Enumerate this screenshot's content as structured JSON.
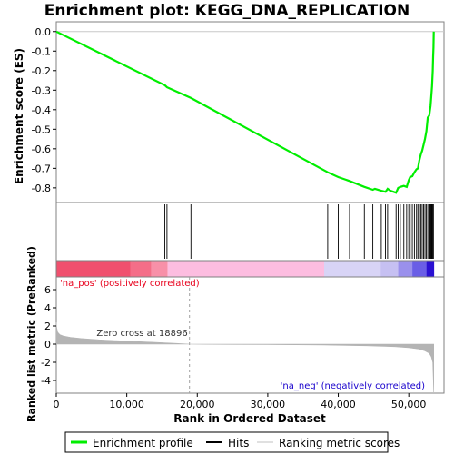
{
  "chart_data": {
    "type": "line",
    "title": "Enrichment plot: KEGG_DNA_REPLICATION",
    "xlabel": "Rank in Ordered Dataset",
    "xlim": [
      0,
      55000
    ],
    "x_ticks": [
      0,
      10000,
      20000,
      30000,
      40000,
      50000
    ],
    "x_tick_labels": [
      "0",
      "10,000",
      "20,000",
      "30,000",
      "40,000",
      "50,000"
    ],
    "top_panel": {
      "ylabel": "Enrichment score (ES)",
      "ylim": [
        -0.875,
        0.05
      ],
      "y_ticks": [
        0.0,
        -0.1,
        -0.2,
        -0.3,
        -0.4,
        -0.5,
        -0.6,
        -0.7,
        -0.8
      ],
      "y_tick_labels": [
        "0.0",
        "-0.1",
        "-0.2",
        "-0.3",
        "-0.4",
        "-0.5",
        "-0.6",
        "-0.7",
        "-0.8"
      ],
      "series": [
        {
          "name": "Enrichment profile",
          "color": "#00ee00",
          "x": [
            0,
            15400,
            15700,
            19100,
            38500,
            40000,
            41600,
            43700,
            44900,
            45200,
            46100,
            46700,
            47000,
            47400,
            48200,
            48500,
            48800,
            49300,
            49700,
            50000,
            50200,
            50500,
            50800,
            51100,
            51300,
            51500,
            51700,
            51900,
            52100,
            52300,
            52500,
            52700,
            52900,
            53100,
            53200,
            53300,
            53400,
            53450,
            53500,
            53550
          ],
          "y": [
            0.0,
            -0.275,
            -0.285,
            -0.34,
            -0.72,
            -0.745,
            -0.765,
            -0.795,
            -0.81,
            -0.805,
            -0.815,
            -0.82,
            -0.805,
            -0.815,
            -0.825,
            -0.8,
            -0.795,
            -0.79,
            -0.795,
            -0.76,
            -0.745,
            -0.74,
            -0.72,
            -0.705,
            -0.7,
            -0.66,
            -0.63,
            -0.61,
            -0.58,
            -0.55,
            -0.51,
            -0.44,
            -0.43,
            -0.38,
            -0.33,
            -0.28,
            -0.2,
            -0.13,
            -0.08,
            0.0
          ]
        }
      ]
    },
    "hits_panel": {
      "name": "Hits",
      "positions": [
        15400,
        15700,
        19100,
        38500,
        40000,
        41600,
        43700,
        44900,
        46100,
        46700,
        47000,
        48200,
        48500,
        48800,
        49300,
        49700,
        50000,
        50200,
        50500,
        50800,
        51100,
        51300,
        51500,
        51700,
        51900,
        52100,
        52300,
        52500,
        52700,
        52900,
        53000,
        53100,
        53200,
        53300,
        53400,
        53450,
        53500
      ]
    },
    "color_bar": {
      "segments": [
        {
          "from": 0,
          "to": 10500,
          "color": "#f0506e"
        },
        {
          "from": 10500,
          "to": 13500,
          "color": "#f46e88"
        },
        {
          "from": 13500,
          "to": 15800,
          "color": "#f890a8"
        },
        {
          "from": 15800,
          "to": 38000,
          "color": "#fdbde0"
        },
        {
          "from": 38000,
          "to": 46000,
          "color": "#d8d4f6"
        },
        {
          "from": 46000,
          "to": 48500,
          "color": "#c6c0f2"
        },
        {
          "from": 48500,
          "to": 50500,
          "color": "#9a90ec"
        },
        {
          "from": 50500,
          "to": 52500,
          "color": "#6a5ee6"
        },
        {
          "from": 52500,
          "to": 53600,
          "color": "#2a10d2"
        }
      ]
    },
    "bottom_panel": {
      "ylabel": "Ranked list metric (PreRanked)",
      "ylim": [
        -5.4,
        7.4
      ],
      "y_ticks": [
        6,
        4,
        2,
        0,
        -2,
        -4
      ],
      "y_tick_labels": [
        "6",
        "4",
        "2",
        "0",
        "-2",
        "-4"
      ],
      "series": [
        {
          "name": "Ranking metric scores",
          "color": "#b4b4b4",
          "x": [
            0,
            60,
            200,
            500,
            1000,
            2000,
            3500,
            6000,
            10000,
            14000,
            17000,
            18896,
            22000,
            30000,
            38000,
            44000,
            48000,
            50000,
            51500,
            52300,
            52900,
            53200,
            53400,
            53550
          ],
          "y": [
            2.4,
            1.8,
            1.3,
            1.05,
            0.9,
            0.75,
            0.62,
            0.48,
            0.33,
            0.2,
            0.08,
            0.0,
            -0.02,
            -0.05,
            -0.1,
            -0.18,
            -0.28,
            -0.4,
            -0.55,
            -0.75,
            -1.0,
            -1.4,
            -2.0,
            -5.3
          ]
        }
      ],
      "zero_cross_label": "Zero cross at 18896",
      "zero_cross_x": 18896,
      "pos_label": "'na_pos' (positively correlated)",
      "neg_label": "'na_neg' (negatively correlated)",
      "pos_color": "#e8001c",
      "neg_color": "#1800cc"
    },
    "legend": [
      {
        "label": "Enrichment profile",
        "color": "#00ee00"
      },
      {
        "label": "Hits",
        "color": "#000000"
      },
      {
        "label": "Ranking metric scores",
        "color": "#b4b4b4"
      }
    ]
  }
}
